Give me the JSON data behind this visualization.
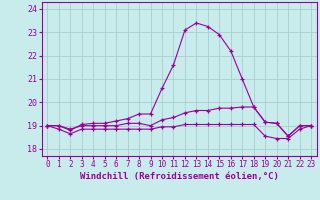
{
  "background_color": "#c8ecec",
  "grid_color": "#aacccc",
  "line_color": "#990099",
  "marker": "+",
  "xlabel": "Windchill (Refroidissement éolien,°C)",
  "xlabel_fontsize": 6.5,
  "xtick_fontsize": 5.5,
  "ytick_fontsize": 6.0,
  "ylim": [
    17.7,
    24.3
  ],
  "xlim": [
    -0.5,
    23.5
  ],
  "yticks": [
    18,
    19,
    20,
    21,
    22,
    23,
    24
  ],
  "xticks": [
    0,
    1,
    2,
    3,
    4,
    5,
    6,
    7,
    8,
    9,
    10,
    11,
    12,
    13,
    14,
    15,
    16,
    17,
    18,
    19,
    20,
    21,
    22,
    23
  ],
  "series": [
    [
      19.0,
      19.0,
      18.8,
      19.05,
      19.1,
      19.1,
      19.2,
      19.3,
      19.5,
      19.5,
      20.6,
      21.6,
      23.1,
      23.4,
      23.25,
      22.9,
      22.2,
      21.0,
      19.8,
      19.15,
      19.1,
      18.55,
      19.0,
      19.0
    ],
    [
      19.0,
      19.0,
      18.85,
      19.0,
      19.0,
      19.0,
      19.0,
      19.1,
      19.1,
      19.0,
      19.25,
      19.35,
      19.55,
      19.65,
      19.65,
      19.75,
      19.75,
      19.8,
      19.8,
      19.15,
      19.1,
      18.55,
      19.0,
      19.0
    ],
    [
      19.0,
      18.85,
      18.65,
      18.85,
      18.85,
      18.85,
      18.85,
      18.85,
      18.85,
      18.85,
      18.95,
      18.95,
      19.05,
      19.05,
      19.05,
      19.05,
      19.05,
      19.05,
      19.05,
      18.55,
      18.45,
      18.45,
      18.85,
      19.0
    ]
  ]
}
